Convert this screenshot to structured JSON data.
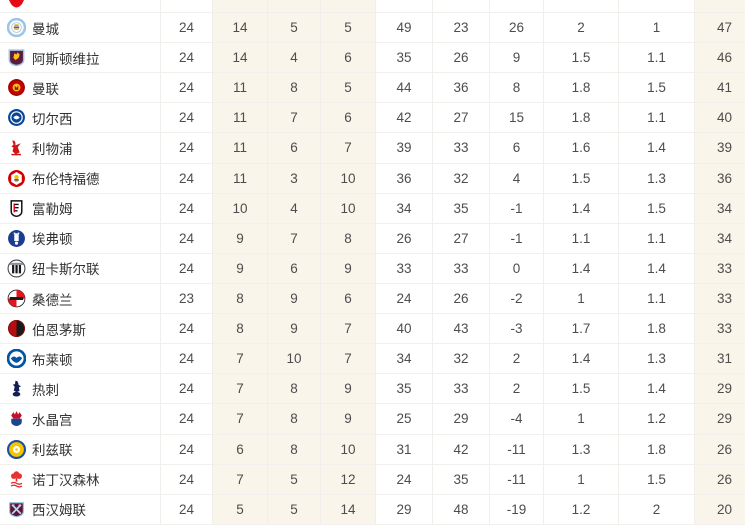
{
  "table": {
    "column_keys": [
      "played",
      "wins",
      "draws",
      "losses",
      "goals_for",
      "goals_against",
      "goal_diff",
      "avg_goals_for",
      "avg_goals_against",
      "points"
    ],
    "partial_top_row": {
      "icon": "red-shield-fragment",
      "icon_color": "#e60a14"
    },
    "rows": [
      {
        "team": "曼城",
        "icon": "man-city",
        "cells": [
          "24",
          "14",
          "5",
          "5",
          "49",
          "23",
          "26",
          "2",
          "1",
          "47"
        ]
      },
      {
        "team": "阿斯顿维拉",
        "icon": "aston-villa",
        "cells": [
          "24",
          "14",
          "4",
          "6",
          "35",
          "26",
          "9",
          "1.5",
          "1.1",
          "46"
        ]
      },
      {
        "team": "曼联",
        "icon": "man-united",
        "cells": [
          "24",
          "11",
          "8",
          "5",
          "44",
          "36",
          "8",
          "1.8",
          "1.5",
          "41"
        ]
      },
      {
        "team": "切尔西",
        "icon": "chelsea",
        "cells": [
          "24",
          "11",
          "7",
          "6",
          "42",
          "27",
          "15",
          "1.8",
          "1.1",
          "40"
        ]
      },
      {
        "team": "利物浦",
        "icon": "liverpool",
        "cells": [
          "24",
          "11",
          "6",
          "7",
          "39",
          "33",
          "6",
          "1.6",
          "1.4",
          "39"
        ]
      },
      {
        "team": "布伦特福德",
        "icon": "brentford",
        "cells": [
          "24",
          "11",
          "3",
          "10",
          "36",
          "32",
          "4",
          "1.5",
          "1.3",
          "36"
        ]
      },
      {
        "team": "富勒姆",
        "icon": "fulham",
        "cells": [
          "24",
          "10",
          "4",
          "10",
          "34",
          "35",
          "-1",
          "1.4",
          "1.5",
          "34"
        ]
      },
      {
        "team": "埃弗顿",
        "icon": "everton",
        "cells": [
          "24",
          "9",
          "7",
          "8",
          "26",
          "27",
          "-1",
          "1.1",
          "1.1",
          "34"
        ]
      },
      {
        "team": "纽卡斯尔联",
        "icon": "newcastle",
        "cells": [
          "24",
          "9",
          "6",
          "9",
          "33",
          "33",
          "0",
          "1.4",
          "1.4",
          "33"
        ]
      },
      {
        "team": "桑德兰",
        "icon": "sunderland",
        "cells": [
          "23",
          "8",
          "9",
          "6",
          "24",
          "26",
          "-2",
          "1",
          "1.1",
          "33"
        ]
      },
      {
        "team": "伯恩茅斯",
        "icon": "bournemouth",
        "cells": [
          "24",
          "8",
          "9",
          "7",
          "40",
          "43",
          "-3",
          "1.7",
          "1.8",
          "33"
        ]
      },
      {
        "team": "布莱顿",
        "icon": "brighton",
        "cells": [
          "24",
          "7",
          "10",
          "7",
          "34",
          "32",
          "2",
          "1.4",
          "1.3",
          "31"
        ]
      },
      {
        "team": "热刺",
        "icon": "tottenham",
        "cells": [
          "24",
          "7",
          "8",
          "9",
          "35",
          "33",
          "2",
          "1.5",
          "1.4",
          "29"
        ]
      },
      {
        "team": "水晶宫",
        "icon": "crystal-palace",
        "cells": [
          "24",
          "7",
          "8",
          "9",
          "25",
          "29",
          "-4",
          "1",
          "1.2",
          "29"
        ]
      },
      {
        "team": "利兹联",
        "icon": "leeds",
        "cells": [
          "24",
          "6",
          "8",
          "10",
          "31",
          "42",
          "-11",
          "1.3",
          "1.8",
          "26"
        ]
      },
      {
        "team": "诺丁汉森林",
        "icon": "nottingham-forest",
        "cells": [
          "24",
          "7",
          "5",
          "12",
          "24",
          "35",
          "-11",
          "1",
          "1.5",
          "26"
        ]
      },
      {
        "team": "西汉姆联",
        "icon": "west-ham",
        "cells": [
          "24",
          "5",
          "5",
          "14",
          "29",
          "48",
          "-19",
          "1.2",
          "2",
          "20"
        ]
      }
    ]
  },
  "colors": {
    "stripe_cream": "#faf5eb",
    "row_border": "#f1f0ec",
    "col_border": "#f1efeb",
    "number_text": "#4d4d4d",
    "team_text": "#333333"
  }
}
